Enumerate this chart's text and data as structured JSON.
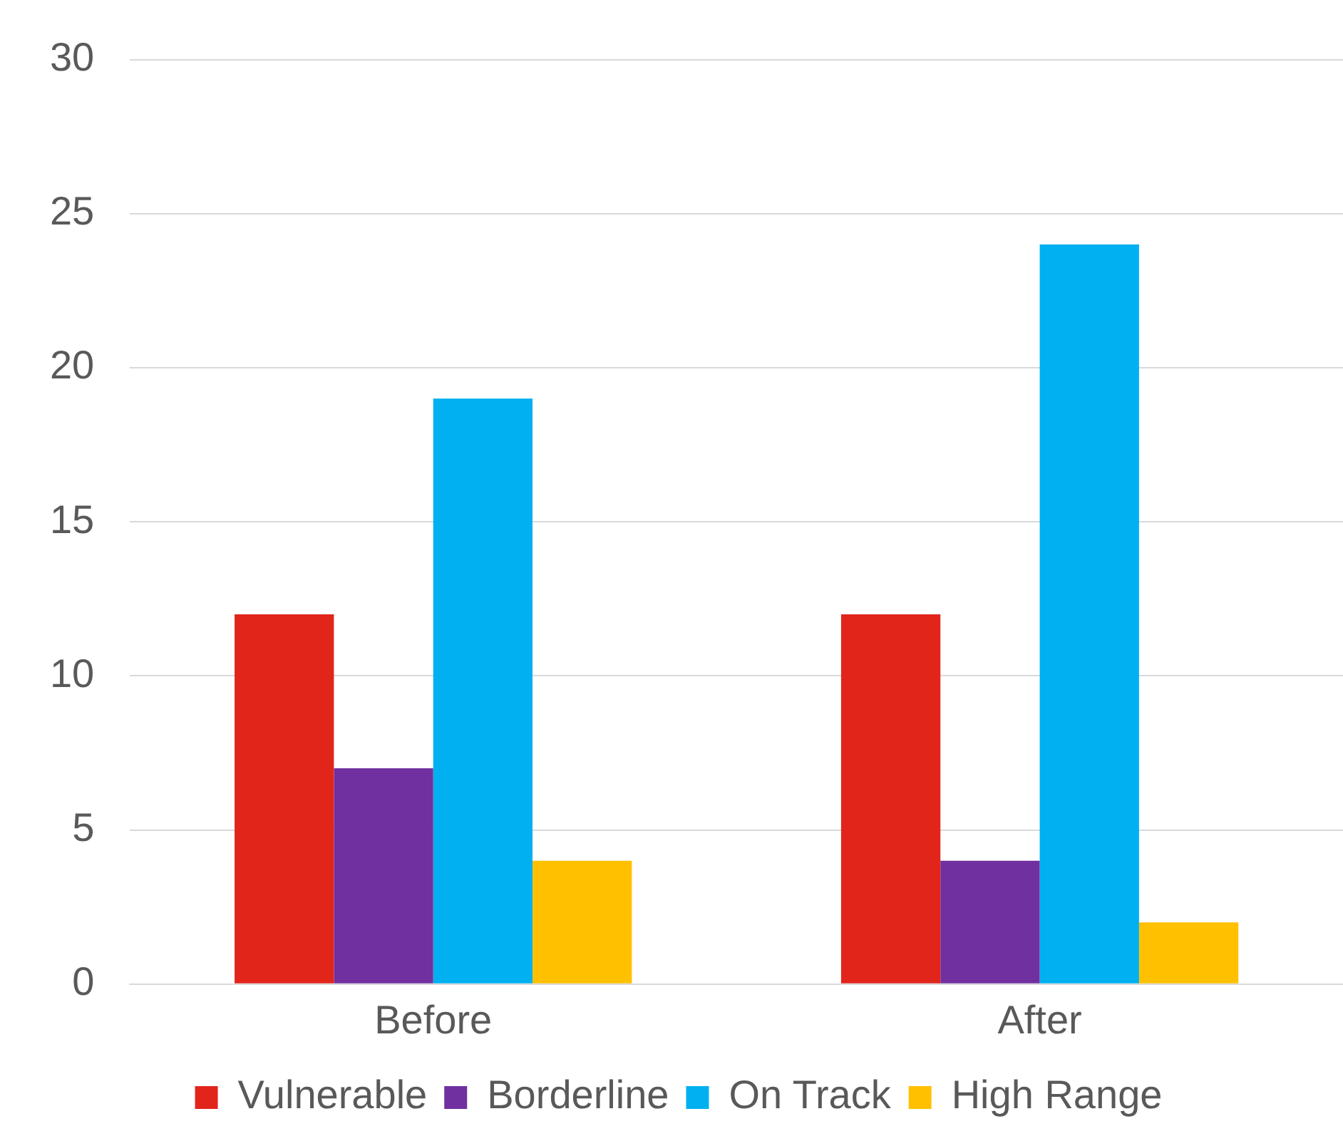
{
  "chart_data": {
    "type": "bar",
    "categories": [
      "Before",
      "After"
    ],
    "series": [
      {
        "name": "Vulnerable",
        "color": "#e1251b",
        "values": [
          12,
          12
        ]
      },
      {
        "name": "Borderline",
        "color": "#7030a0",
        "values": [
          7,
          4
        ]
      },
      {
        "name": "On Track",
        "color": "#00b0f0",
        "values": [
          19,
          24
        ]
      },
      {
        "name": "High Range",
        "color": "#ffc000",
        "values": [
          4,
          2
        ]
      }
    ],
    "ylim": [
      0,
      30
    ],
    "yticks": [
      0,
      5,
      10,
      15,
      20,
      25,
      30
    ],
    "grid": "y",
    "legend": "bottom"
  }
}
